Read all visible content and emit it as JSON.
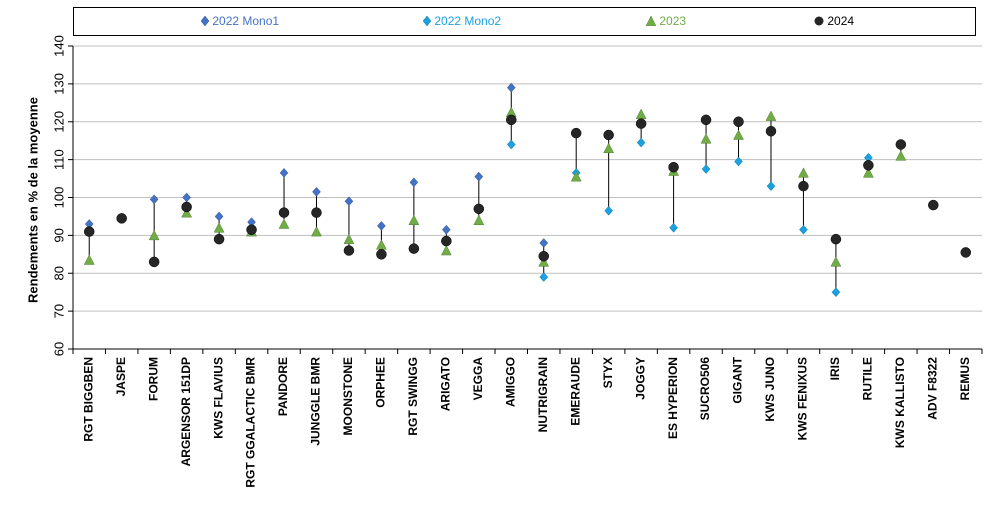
{
  "chart_data": {
    "type": "scatter",
    "ylabel": "Rendements en % de la moyenne",
    "ylim": [
      60,
      140
    ],
    "yticks": [
      60,
      70,
      80,
      90,
      100,
      110,
      120,
      130,
      140
    ],
    "grid": "horizontal",
    "legend_position": "top",
    "categories": [
      "RGT BIGGBEN",
      "JASPE",
      "FORUM",
      "ARGENSOR 151DP",
      "KWS FLAVIUS",
      "RGT GGALACTIC BMR",
      "PANDORE",
      "JUNGGLE BMR",
      "MOONSTONE",
      "ORPHEE",
      "RGT SWINGG",
      "ARIGATO",
      "VEGGA",
      "AMIGGO",
      "NUTRIGRAIN",
      "EMERAUDE",
      "STYX",
      "JOGGY",
      "ES HYPERION",
      "SUCRO506",
      "GIGANT",
      "KWS JUNO",
      "KWS FENIXUS",
      "IRIS",
      "RUTILE",
      "KWS KALLISTO",
      "ADV F8322",
      "REMUS"
    ],
    "series": [
      {
        "name": "2022 Mono1",
        "marker": "diamond",
        "color": "#4472C4",
        "values": [
          93,
          null,
          99.5,
          100,
          95,
          93.5,
          106.5,
          101.5,
          99,
          92.5,
          104,
          91.5,
          105.5,
          129,
          88,
          null,
          null,
          null,
          null,
          null,
          null,
          null,
          null,
          null,
          null,
          null,
          null,
          null
        ]
      },
      {
        "name": "2022 Mono2",
        "marker": "diamond",
        "color": "#1BA1E2",
        "values": [
          null,
          null,
          null,
          null,
          null,
          null,
          null,
          null,
          null,
          null,
          null,
          null,
          null,
          114,
          79,
          106.5,
          96.5,
          114.5,
          92,
          107.5,
          109.5,
          103,
          91.5,
          75,
          110.5,
          null,
          null,
          null
        ]
      },
      {
        "name": "2023",
        "marker": "triangle",
        "color": "#70AD47",
        "values": [
          83.5,
          null,
          90,
          96,
          92,
          91,
          93,
          91,
          89,
          87.5,
          94,
          86,
          94,
          122.5,
          83,
          105.5,
          113,
          122,
          107,
          115.5,
          116.5,
          121.5,
          106.5,
          83,
          106.5,
          111,
          null,
          null
        ]
      },
      {
        "name": "2024",
        "marker": "circle",
        "color": "#262626",
        "values": [
          91,
          94.5,
          83,
          97.5,
          89,
          91.5,
          96,
          96,
          86,
          85,
          86.5,
          88.5,
          97,
          120.5,
          84.5,
          117,
          116.5,
          119.5,
          108,
          120.5,
          120,
          117.5,
          103,
          89,
          108.5,
          114,
          98,
          85.5
        ]
      }
    ]
  }
}
